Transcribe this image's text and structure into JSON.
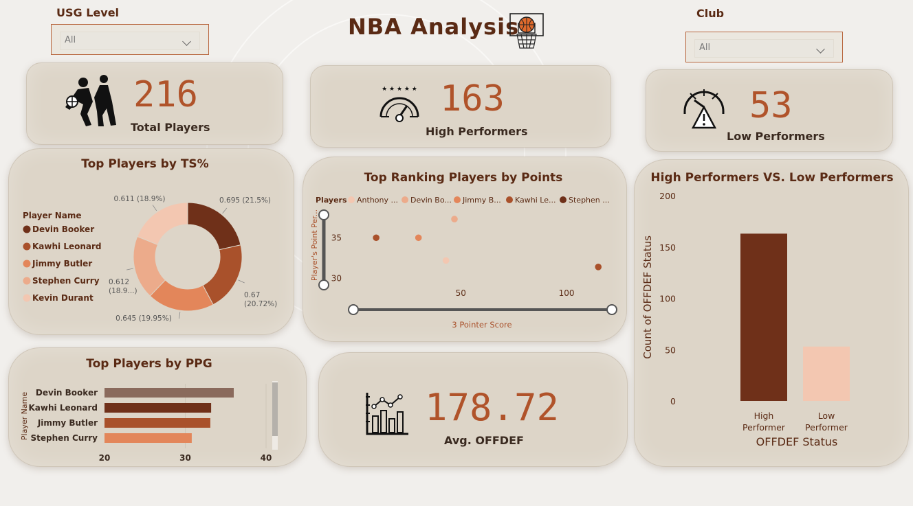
{
  "title": "NBA Analysis",
  "slicers": {
    "usg": {
      "label": "USG Level",
      "value": "All"
    },
    "club": {
      "label": "Club",
      "value": "All"
    }
  },
  "kpis": {
    "total": {
      "value": "216",
      "label": "Total Players"
    },
    "high": {
      "value": "163",
      "label": "High Performers"
    },
    "low": {
      "value": "53",
      "label": "Low Performers"
    },
    "offdef": {
      "value": "178.72",
      "label": "Avg. OFFDEF"
    }
  },
  "colors": {
    "c1": "#6f3019",
    "c2": "#a9512b",
    "c3": "#e3865a",
    "c4": "#ecab8b",
    "c5": "#f3c7b1"
  },
  "chart_data": [
    {
      "type": "pie",
      "title": "Top Players by TS%",
      "legend_title": "Player Name",
      "categories": [
        "Devin Booker",
        "Kawhi Leonard",
        "Jimmy Butler",
        "Stephen Curry",
        "Kevin Durant"
      ],
      "values": [
        0.695,
        0.67,
        0.645,
        0.612,
        0.611
      ],
      "labels": [
        "0.695 (21.5%)",
        "0.67 (20.72%)",
        "0.645 (19.95%)",
        "0.612 (18.9...)",
        "0.611 (18.9%)"
      ],
      "colors": [
        "#6f3019",
        "#a9512b",
        "#e3865a",
        "#ecab8b",
        "#f3c7b1"
      ],
      "legend_position": "left"
    },
    {
      "type": "scatter",
      "title": "Top Ranking Players by Points",
      "legend_title": "Players",
      "legend": [
        "Anthony ...",
        "Devin Bo...",
        "Jimmy B...",
        "Kawhi Le...",
        "Stephen ..."
      ],
      "legend_colors": [
        "#f3c7b1",
        "#ecab8b",
        "#e3865a",
        "#a9512b",
        "#6f3019"
      ],
      "xlabel": "3 Pointer Score",
      "ylabel": "Player's Point Per...",
      "xticks": [
        "50",
        "100"
      ],
      "yticks": [
        "30",
        "35"
      ],
      "xlim": [
        -5,
        125
      ],
      "ylim": [
        28,
        39
      ],
      "points": [
        {
          "x": 10,
          "y": 35,
          "color": "#a9512b"
        },
        {
          "x": 30,
          "y": 35,
          "color": "#e3865a"
        },
        {
          "x": 47,
          "y": 37.3,
          "color": "#ecab8b"
        },
        {
          "x": 43,
          "y": 32.2,
          "color": "#f3c7b1"
        },
        {
          "x": 115,
          "y": 31.4,
          "color": "#a9512b"
        }
      ]
    },
    {
      "type": "bar",
      "title": "High Performers VS. Low Performers",
      "categories": [
        "High Performer",
        "Low Performer"
      ],
      "values": [
        163,
        53
      ],
      "colors": [
        "#6f3019",
        "#f3c7b1"
      ],
      "xlabel": "OFFDEF Status",
      "ylabel": "Count of OFFDEF Status",
      "yticks": [
        "0",
        "50",
        "100",
        "150",
        "200"
      ],
      "ylim": [
        0,
        200
      ]
    },
    {
      "type": "bar",
      "orientation": "horizontal",
      "title": "Top Players by PPG",
      "ylabel": "Player Name",
      "categories": [
        "Devin Booker",
        "Kawhi Leonard",
        "Jimmy Butler",
        "Stephen Curry"
      ],
      "values": [
        36,
        33.2,
        33.1,
        30.8
      ],
      "colors": [
        "#8a6a5c",
        "#6f3019",
        "#a9512b",
        "#e3865a"
      ],
      "xticks": [
        "20",
        "30",
        "40"
      ],
      "xlim": [
        20,
        40
      ]
    }
  ]
}
